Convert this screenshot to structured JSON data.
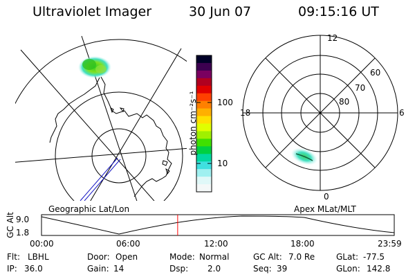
{
  "header": {
    "title": "Ultraviolet Imager",
    "date": "30 Jun 07",
    "time": "09:15:16 UT"
  },
  "colorbar": {
    "unit_label": "photon cm⁻²s⁻¹",
    "ticks": [
      "100",
      "10"
    ],
    "scale": "log",
    "colors": [
      "#000028",
      "#3c0050",
      "#7a0060",
      "#b00020",
      "#e00000",
      "#ff4000",
      "#ff8000",
      "#ffb000",
      "#ffe000",
      "#e0ff00",
      "#a0f000",
      "#40e000",
      "#00d040",
      "#00d8a0",
      "#40e0e0",
      "#a0f0f0",
      "#e0f8f8",
      "#f4f8f8"
    ]
  },
  "left_panel": {
    "caption": "Geographic Lat/Lon"
  },
  "right_panel": {
    "caption": "Apex MLat/MLT",
    "mlt_labels": {
      "top": "12",
      "right": "6",
      "bottom": "0",
      "left": "18"
    },
    "lat_labels": [
      "60",
      "70",
      "80"
    ]
  },
  "altitude_strip": {
    "ylabel": "GC Alt",
    "y_ticks": [
      "9.0",
      "1.8"
    ],
    "x_ticks": [
      "00:00",
      "06:00",
      "12:00",
      "18:00",
      "23:59"
    ],
    "current_time_fraction": 0.386
  },
  "info": {
    "flt_label": "Flt:",
    "flt_value": "LBHL",
    "ip_label": "IP:",
    "ip_value": "36.0",
    "door_label": "Door:",
    "door_value": "Open",
    "gain_label": "Gain:",
    "gain_value": "14",
    "mode_label": "Mode:",
    "mode_value": "Normal",
    "dsp_label": "Dsp:",
    "dsp_value": "2.0",
    "gcalt_label": "GC Alt:",
    "gcalt_value": "7.0 Re",
    "seq_label": "Seq:",
    "seq_value": "39",
    "glat_label": "GLat:",
    "glat_value": "-77.5",
    "glon_label": "GLon:",
    "glon_value": "142.8"
  },
  "colors": {
    "ink": "#000000",
    "marker": "#ff0000",
    "track": "#1010c0"
  }
}
